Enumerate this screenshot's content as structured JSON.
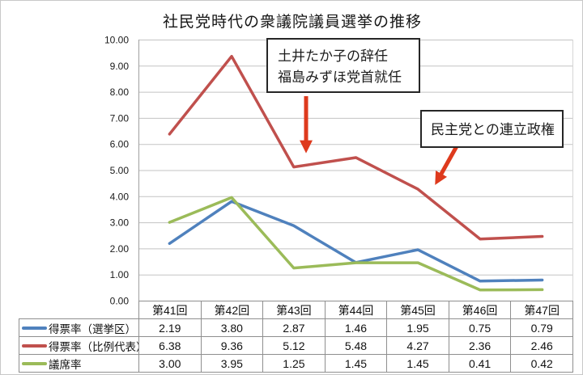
{
  "title": "社民党時代の衆議院議員選挙の推移",
  "annotations": [
    {
      "lines": [
        "土井たか子の辞任",
        "福島みずほ党首就任"
      ]
    },
    {
      "lines": [
        "民主党との連立政権"
      ]
    }
  ],
  "colors": {
    "series_kyokuku_blue": "#4F81BD",
    "series_hirei_red": "#C0504D",
    "series_giseki_green": "#9BBB59",
    "arrow_red": "#DE3A1D",
    "gridline_gray": "#c3c3c3",
    "axis_gray": "#a0a0a0",
    "table_border_gray": "#8f8f8f"
  },
  "chart_data": {
    "type": "line",
    "title": "社民党時代の衆議院議員選挙の推移",
    "categories": [
      "第41回",
      "第42回",
      "第43回",
      "第44回",
      "第45回",
      "第46回",
      "第47回"
    ],
    "series": [
      {
        "name": "得票率（選挙区）",
        "color": "#4F81BD",
        "values": [
          2.19,
          3.8,
          2.87,
          1.46,
          1.95,
          0.75,
          0.79
        ]
      },
      {
        "name": "得票率（比例代表）",
        "color": "#C0504D",
        "values": [
          6.38,
          9.36,
          5.12,
          5.48,
          4.27,
          2.36,
          2.46
        ]
      },
      {
        "name": "議席率",
        "color": "#9BBB59",
        "values": [
          3.0,
          3.95,
          1.25,
          1.45,
          1.45,
          0.41,
          0.42
        ]
      }
    ],
    "ylim": [
      0,
      10
    ],
    "ytick_step": 1,
    "ytick_format": "2dp",
    "grid": true,
    "legend_position": "data-table-left",
    "xlabel": "",
    "ylabel": ""
  }
}
